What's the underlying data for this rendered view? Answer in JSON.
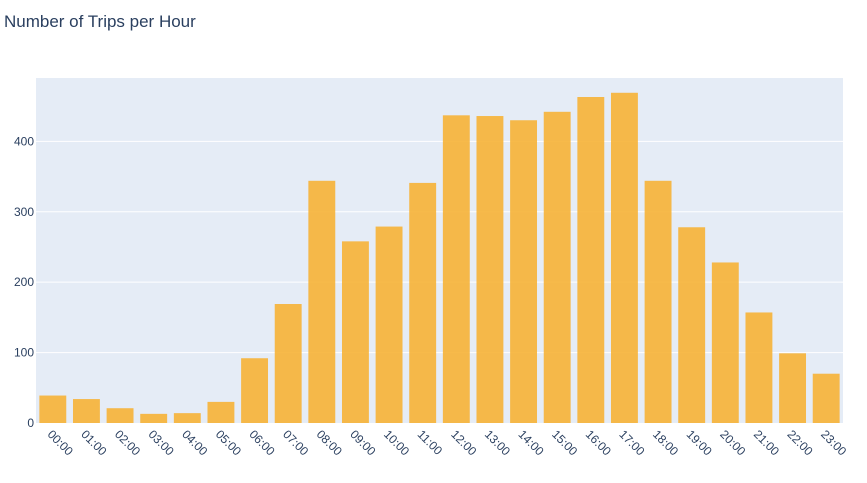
{
  "chart_data": {
    "type": "bar",
    "title": "Number of Trips per Hour",
    "xlabel": "",
    "ylabel": "",
    "categories": [
      "00:00",
      "01:00",
      "02:00",
      "03:00",
      "04:00",
      "05:00",
      "06:00",
      "07:00",
      "08:00",
      "09:00",
      "10:00",
      "11:00",
      "12:00",
      "13:00",
      "14:00",
      "15:00",
      "16:00",
      "17:00",
      "18:00",
      "19:00",
      "20:00",
      "21:00",
      "22:00",
      "23:00"
    ],
    "values": [
      39,
      34,
      21,
      13,
      14,
      30,
      92,
      169,
      344,
      258,
      279,
      341,
      437,
      436,
      430,
      442,
      463,
      469,
      344,
      278,
      228,
      157,
      99,
      70
    ],
    "ylim": [
      0,
      490
    ],
    "yticks": [
      0,
      100,
      200,
      300,
      400
    ],
    "grid": true,
    "colors": {
      "bar": "#f6b236",
      "plot_bg": "#e5ecf6",
      "grid": "#ffffff",
      "text": "#2a3f5f"
    }
  }
}
